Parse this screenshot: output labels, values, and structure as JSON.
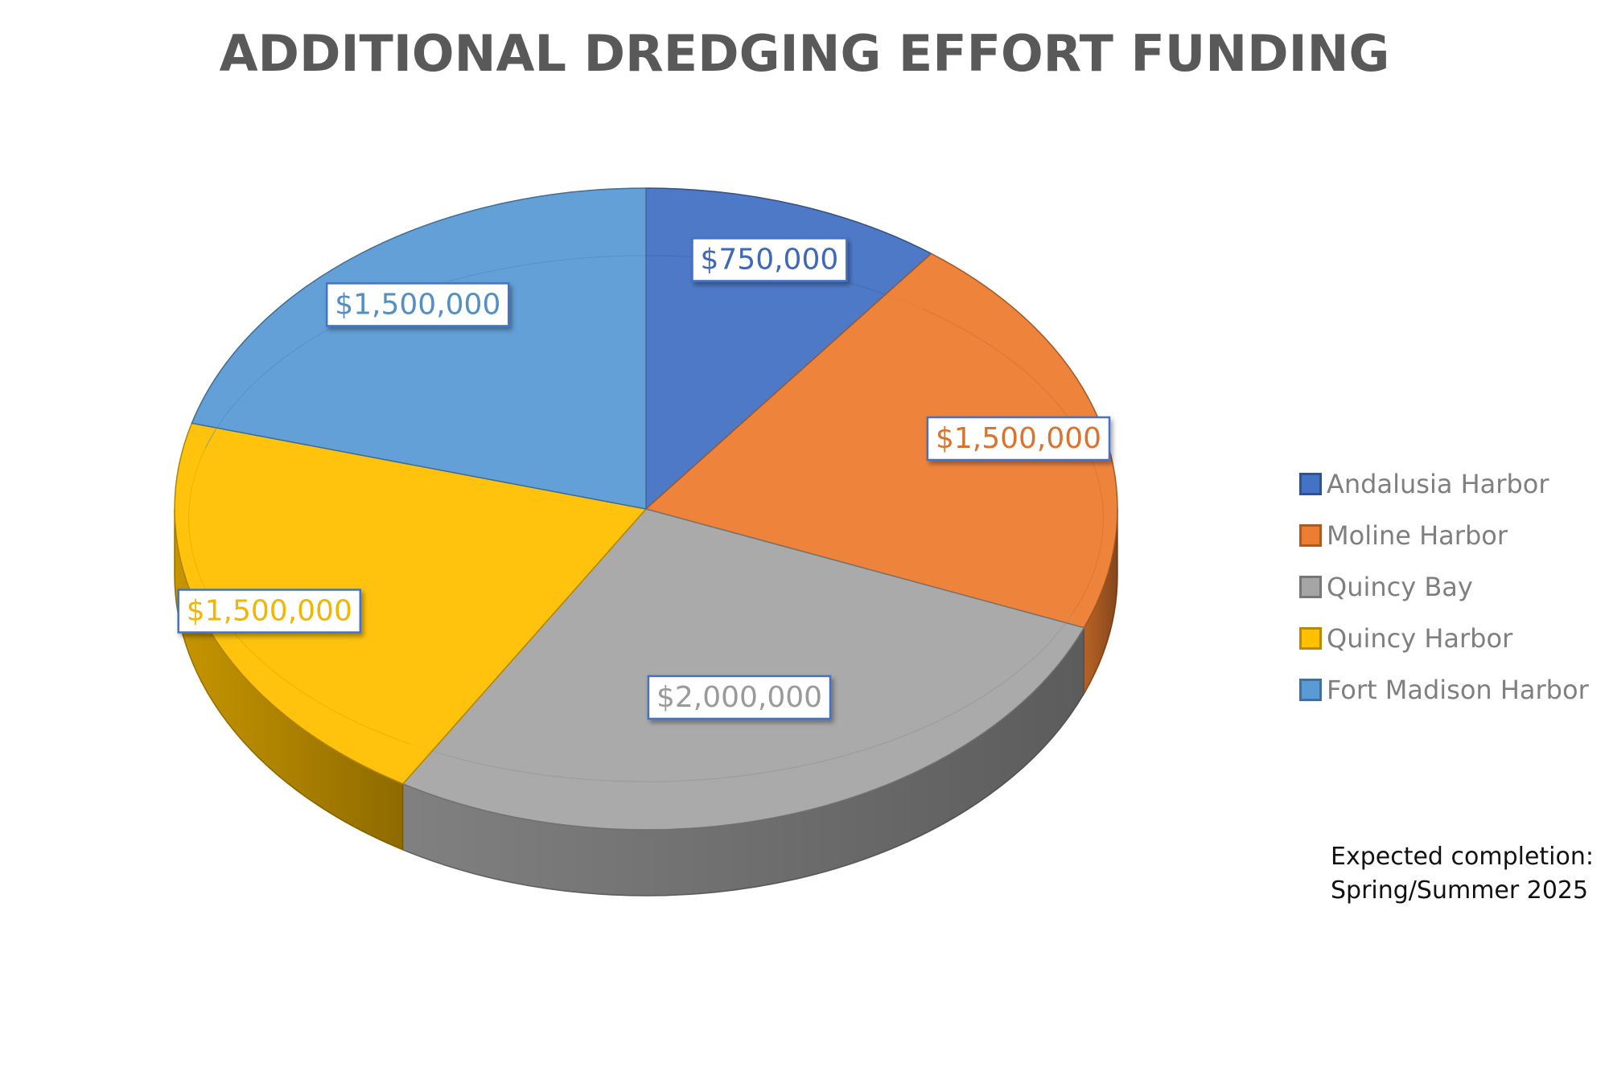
{
  "chart_data": {
    "type": "pie",
    "title": "ADDITIONAL DREDGING EFFORT FUNDING",
    "slices": [
      {
        "name": "Andalusia Harbor",
        "value": 750000,
        "label": "$750,000",
        "color": "#4472c4"
      },
      {
        "name": "Moline Harbor",
        "value": 1500000,
        "label": "$1,500,000",
        "color": "#ed7d31"
      },
      {
        "name": "Quincy Bay",
        "value": 2000000,
        "label": "$2,000,000",
        "color": "#a5a5a5"
      },
      {
        "name": "Quincy Harbor",
        "value": 1500000,
        "label": "$1,500,000",
        "color": "#ffc000"
      },
      {
        "name": "Fort Madison Harbor",
        "value": 1500000,
        "label": "$1,500,000",
        "color": "#5b9bd5"
      }
    ],
    "legend_position": "right"
  },
  "note": {
    "line1": "Expected completion:",
    "line2": "Spring/Summer 2025"
  }
}
